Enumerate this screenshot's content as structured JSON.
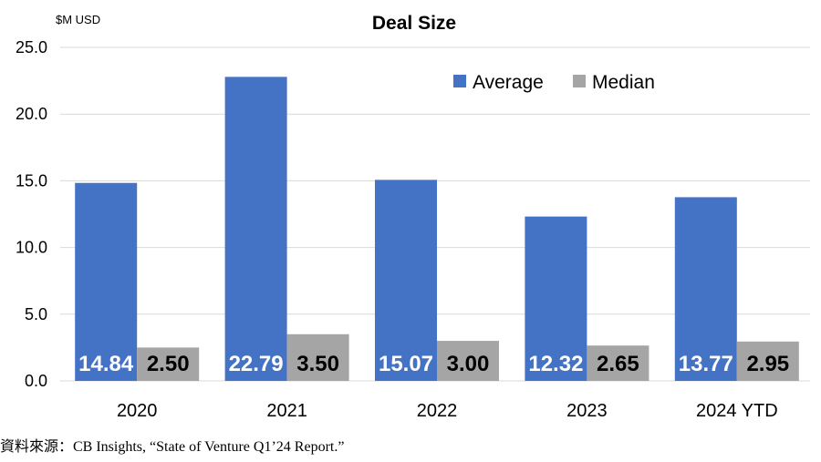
{
  "chart_data": {
    "type": "bar",
    "title": "Deal Size",
    "unit_label": "$M USD",
    "categories": [
      "2020",
      "2021",
      "2022",
      "2023",
      "2024 YTD"
    ],
    "series": [
      {
        "name": "Average",
        "color": "#4472C4",
        "label_color": "#ffffff",
        "values": [
          14.84,
          22.79,
          15.07,
          12.32,
          13.77
        ],
        "labels": [
          "14.84",
          "22.79",
          "15.07",
          "12.32",
          "13.77"
        ]
      },
      {
        "name": "Median",
        "color": "#A5A5A5",
        "label_color": "#000000",
        "values": [
          2.5,
          3.5,
          3.0,
          2.65,
          2.95
        ],
        "labels": [
          "2.50",
          "3.50",
          "3.00",
          "2.65",
          "2.95"
        ]
      }
    ],
    "ylim": [
      0,
      25
    ],
    "yticks": [
      "0.0",
      "5.0",
      "10.0",
      "15.0",
      "20.0",
      "25.0"
    ],
    "grid": true,
    "legend_position": "top-right"
  },
  "source_note": "資料來源：CB Insights, “State of Venture Q1’24 Report.”"
}
